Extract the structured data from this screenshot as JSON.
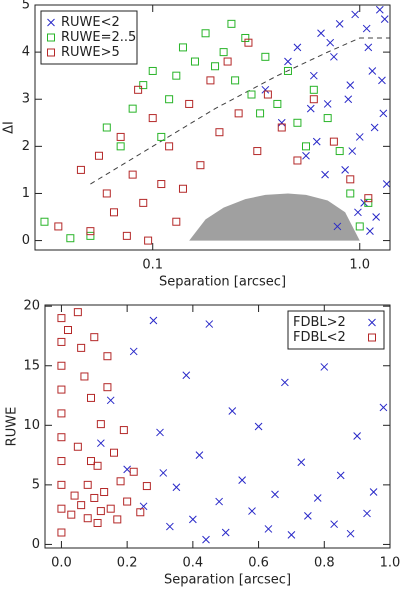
{
  "chart_data": [
    {
      "type": "scatter",
      "xlabel": "Separation [arcsec]",
      "ylabel": "ΔI",
      "xscale": "log",
      "xlim": [
        0.027,
        1.4
      ],
      "ylim": [
        -0.2,
        5
      ],
      "xticks": [
        0.1,
        {
          "value": 1,
          "label": "1.0"
        }
      ],
      "yticks": [
        0,
        1,
        2,
        3,
        4,
        5
      ],
      "legend": "upper left",
      "series": [
        {
          "name": "RUWE<2",
          "color": "#2828c8",
          "marker": "x",
          "x": [
            0.35,
            0.42,
            0.5,
            0.55,
            0.6,
            0.65,
            0.7,
            0.75,
            0.8,
            0.85,
            0.9,
            0.95,
            1.0,
            1.05,
            1.1,
            1.15,
            1.2,
            1.25,
            1.3,
            1.35,
            0.45,
            0.62,
            0.78,
            0.88,
            0.98,
            1.08,
            1.18,
            1.28,
            0.72,
            0.92,
            1.12,
            1.32,
            0.58,
            0.68
          ],
          "values": [
            3.2,
            2.5,
            4.1,
            1.8,
            3.5,
            4.4,
            2.9,
            3.9,
            4.6,
            1.5,
            3.3,
            4.8,
            2.2,
            0.8,
            4.1,
            3.6,
            0.5,
            4.9,
            2.7,
            1.2,
            3.8,
            2.1,
            0.3,
            3.0,
            0.6,
            4.5,
            2.4,
            3.4,
            4.2,
            1.9,
            0.2,
            4.7,
            2.8,
            1.4
          ]
        },
        {
          "name": "RUWE=2..5",
          "color": "#28b428",
          "marker": "square",
          "x": [
            0.03,
            0.04,
            0.05,
            0.06,
            0.07,
            0.08,
            0.09,
            0.1,
            0.12,
            0.14,
            0.16,
            0.18,
            0.2,
            0.22,
            0.25,
            0.28,
            0.3,
            0.35,
            0.4,
            0.45,
            0.5,
            0.6,
            0.7,
            0.8,
            0.9,
            1.0,
            1.1,
            0.11,
            0.13,
            0.24,
            0.33,
            0.55
          ],
          "values": [
            0.4,
            0.05,
            0.1,
            2.4,
            2.0,
            2.8,
            3.3,
            3.6,
            3.0,
            4.1,
            3.8,
            4.4,
            3.7,
            4.0,
            3.4,
            4.3,
            3.1,
            3.9,
            2.9,
            3.6,
            2.5,
            3.2,
            2.6,
            1.9,
            1.0,
            0.3,
            0.8,
            2.2,
            3.5,
            4.6,
            2.7,
            2.0
          ]
        },
        {
          "name": "RUWE>5",
          "color": "#b42828",
          "marker": "square",
          "x": [
            0.035,
            0.045,
            0.05,
            0.055,
            0.06,
            0.065,
            0.07,
            0.075,
            0.08,
            0.085,
            0.09,
            0.1,
            0.11,
            0.12,
            0.13,
            0.15,
            0.17,
            0.19,
            0.21,
            0.23,
            0.26,
            0.29,
            0.32,
            0.36,
            0.42,
            0.5,
            0.6,
            0.75,
            0.9,
            1.1,
            0.095,
            0.14
          ],
          "values": [
            0.3,
            1.5,
            0.2,
            1.8,
            1.0,
            0.6,
            2.2,
            0.1,
            1.4,
            3.2,
            0.8,
            2.6,
            1.2,
            2.0,
            0.4,
            2.9,
            1.6,
            3.4,
            2.3,
            3.8,
            2.7,
            4.2,
            1.9,
            3.1,
            2.4,
            1.7,
            3.0,
            2.1,
            1.3,
            0.9,
            0.0,
            1.1
          ]
        }
      ],
      "shaded_region": {
        "color": "#a0a0a0",
        "x": [
          0.15,
          0.18,
          0.22,
          0.28,
          0.35,
          0.45,
          0.55,
          0.7,
          0.85,
          1.0
        ],
        "y": [
          0,
          0.45,
          0.7,
          0.88,
          0.97,
          1.0,
          0.97,
          0.85,
          0.6,
          0
        ]
      },
      "dashed_line": {
        "color": "#404040",
        "x": [
          0.05,
          0.1,
          0.2,
          0.4,
          0.7,
          1.0,
          1.4
        ],
        "y": [
          1.2,
          2.0,
          2.8,
          3.5,
          4.0,
          4.3,
          4.3
        ]
      }
    },
    {
      "type": "scatter",
      "xlabel": "Separation [arcsec]",
      "ylabel": "RUWE",
      "xscale": "linear",
      "xlim": [
        -0.05,
        1.0
      ],
      "ylim": [
        -0.3,
        20.1
      ],
      "xticks": [
        {
          "value": 0,
          "label": "0.0"
        },
        0.2,
        0.4,
        0.6,
        0.8,
        {
          "value": 1,
          "label": "1.0"
        }
      ],
      "yticks": [
        0,
        5,
        10,
        15,
        20
      ],
      "legend": "upper right",
      "series": [
        {
          "name": "FDBL>2",
          "color": "#2828c8",
          "marker": "x",
          "x": [
            0.12,
            0.15,
            0.2,
            0.25,
            0.28,
            0.3,
            0.33,
            0.35,
            0.38,
            0.4,
            0.42,
            0.45,
            0.48,
            0.5,
            0.52,
            0.55,
            0.58,
            0.6,
            0.63,
            0.65,
            0.68,
            0.7,
            0.73,
            0.75,
            0.78,
            0.8,
            0.83,
            0.85,
            0.88,
            0.9,
            0.93,
            0.95,
            0.98,
            0.44,
            0.31,
            0.22
          ],
          "values": [
            8.5,
            12.1,
            6.3,
            3.2,
            18.8,
            9.4,
            1.5,
            4.8,
            14.2,
            2.1,
            7.5,
            18.5,
            3.6,
            1.0,
            11.2,
            5.4,
            2.8,
            9.9,
            1.3,
            4.2,
            13.6,
            0.8,
            6.9,
            2.4,
            3.9,
            14.9,
            1.7,
            5.8,
            0.9,
            9.1,
            2.6,
            4.4,
            11.5,
            0.4,
            6.0,
            16.2
          ]
        },
        {
          "name": "FDBL<2",
          "color": "#b42828",
          "marker": "square",
          "x": [
            0,
            0,
            0,
            0,
            0,
            0,
            0,
            0,
            0,
            0,
            0.03,
            0.04,
            0.05,
            0.05,
            0.06,
            0.07,
            0.08,
            0.08,
            0.09,
            0.1,
            0.1,
            0.11,
            0.12,
            0.12,
            0.13,
            0.14,
            0.15,
            0.16,
            0.17,
            0.18,
            0.19,
            0.2,
            0.22,
            0.24,
            0.26,
            0.06,
            0.09,
            0.11,
            0.14,
            0.02
          ],
          "values": [
            1,
            3,
            5,
            7,
            9,
            11,
            13,
            15,
            17,
            19,
            2.5,
            4.1,
            19.5,
            8.2,
            3.3,
            14.1,
            5.0,
            2.2,
            12.3,
            3.9,
            17.4,
            6.6,
            2.8,
            10.1,
            4.4,
            15.8,
            3.0,
            7.7,
            2.1,
            5.3,
            9.6,
            3.6,
            6.1,
            2.7,
            4.9,
            16.5,
            7.0,
            1.8,
            13.2,
            18.0
          ]
        }
      ]
    }
  ]
}
